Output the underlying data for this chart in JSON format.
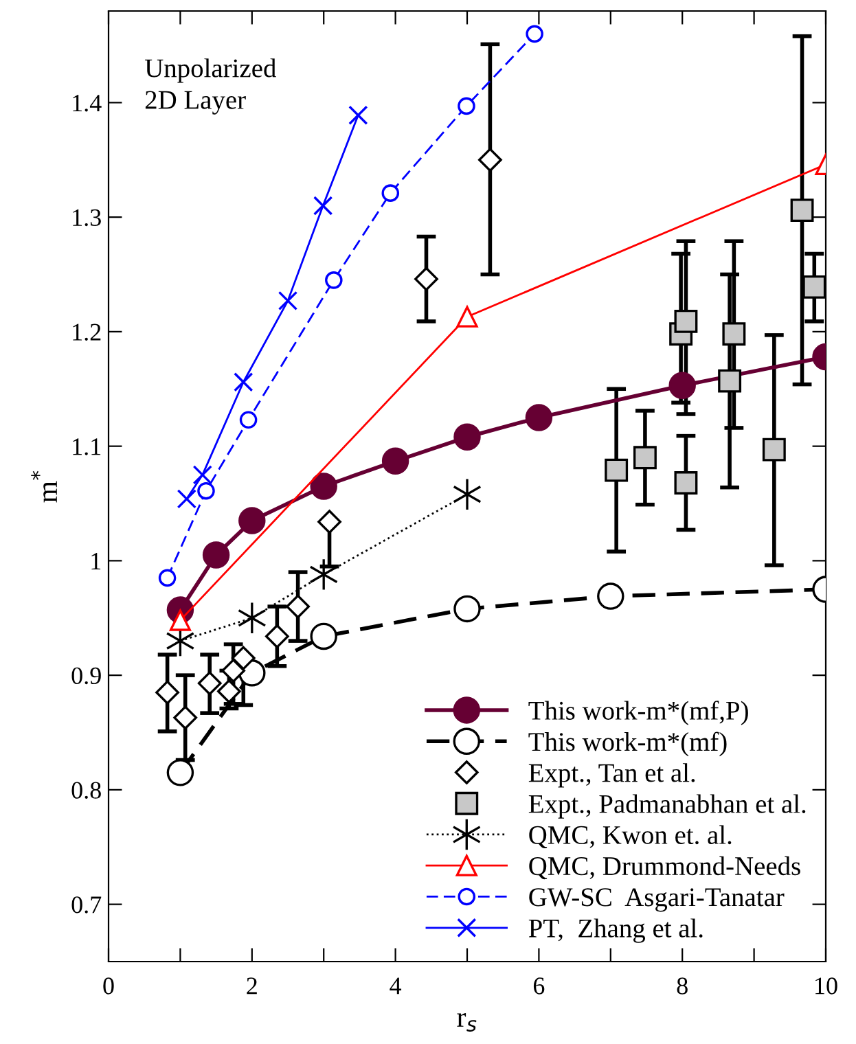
{
  "chart_data": {
    "type": "line",
    "xlabel": "r$_{s}$",
    "ylabel": "m$^{*}$",
    "annotations": [
      "Unpolarized\n2D Layer"
    ],
    "xlim": [
      0,
      10
    ],
    "ylim": [
      0.65,
      1.48
    ],
    "xticks": [
      0,
      {
        "value": 1,
        "label": null
      },
      2,
      {
        "value": 3,
        "label": null
      },
      4,
      {
        "value": 5,
        "label": null
      },
      6,
      {
        "value": 7,
        "label": null
      },
      8,
      {
        "value": 9,
        "label": null
      },
      10
    ],
    "yticks": [
      0.7,
      0.8,
      0.9,
      1,
      1.1,
      1.2,
      1.3,
      1.4
    ],
    "grid": false,
    "legend": "bottom right",
    "series": [
      {
        "name": "This work-m*(mf,P)",
        "color": "#660033",
        "marker": "circle",
        "line_style": "solid",
        "x": [
          1,
          1.5,
          2,
          3,
          4,
          5,
          6,
          8,
          10
        ],
        "values": [
          0.957,
          1.005,
          1.035,
          1.065,
          1.087,
          1.108,
          1.125,
          1.153,
          1.178
        ]
      },
      {
        "name": "This work-m*(mf)",
        "color": "#000000",
        "marker": "circle",
        "line_style": "dashed",
        "x": [
          1,
          2,
          3,
          5,
          7,
          10
        ],
        "values": [
          0.815,
          0.902,
          0.934,
          0.958,
          0.969,
          0.975
        ]
      },
      {
        "name": "Expt., Tan et al.",
        "type": "scatter",
        "color": "#000000",
        "marker": "diamond",
        "x": [
          0.82,
          1.07,
          1.41,
          1.68,
          1.74,
          1.88,
          2.35,
          2.64,
          3.08,
          4.43,
          5.32
        ],
        "values": [
          0.885,
          0.863,
          0.893,
          0.886,
          0.904,
          0.915,
          0.934,
          0.96,
          1.034,
          1.246,
          1.35
        ],
        "errors": [
          [
            0.851,
            0.918
          ],
          [
            0.826,
            0.9
          ],
          [
            0.867,
            0.918
          ],
          [
            0.871,
            0.904
          ],
          [
            0.875,
            0.927
          ],
          [
            0.874,
            0.915
          ],
          [
            0.908,
            0.96
          ],
          [
            0.93,
            0.99
          ],
          [
            0.995,
            1.034
          ],
          [
            1.209,
            1.283
          ],
          [
            1.25,
            1.451
          ]
        ]
      },
      {
        "name": "Expt., Padmanabhan et al.",
        "type": "scatter",
        "color": "#000000",
        "marker": "square",
        "x": [
          7.08,
          7.48,
          8.05,
          7.98,
          8.05,
          8.72,
          8.66,
          9.28,
          9.67,
          9.84
        ],
        "values": [
          1.079,
          1.09,
          1.068,
          1.198,
          1.209,
          1.198,
          1.157,
          1.097,
          1.306,
          1.239
        ],
        "errors": [
          [
            1.008,
            1.15
          ],
          [
            1.049,
            1.131
          ],
          [
            1.027,
            1.109
          ],
          [
            1.138,
            1.268
          ],
          [
            1.128,
            1.279
          ],
          [
            1.116,
            1.279
          ],
          [
            1.064,
            1.25
          ],
          [
            0.996,
            1.197
          ],
          [
            1.154,
            1.458
          ],
          [
            1.209,
            1.268
          ]
        ]
      },
      {
        "name": "QMC, Kwon et. al.",
        "color": "#000000",
        "marker": "cross",
        "line_style": "dotted",
        "x": [
          1,
          2,
          3,
          5
        ],
        "values": [
          0.93,
          0.95,
          0.988,
          1.058
        ]
      },
      {
        "name": "QMC, Drummond-Needs",
        "color": "#ff0000",
        "marker": "triangle",
        "line_style": "solid",
        "x": [
          1,
          5,
          10
        ],
        "values": [
          0.948,
          1.213,
          1.346
        ]
      },
      {
        "name": "GW-SC  Asgari-Tanatar",
        "color": "#0000ff",
        "marker": "circle",
        "line_style": "dashed",
        "x": [
          0.82,
          1.36,
          1.95,
          3.14,
          3.93,
          4.99,
          5.94
        ],
        "values": [
          0.985,
          1.061,
          1.123,
          1.245,
          1.321,
          1.397,
          1.46
        ]
      },
      {
        "name": "PT,  Zhang et al.",
        "color": "#0000ff",
        "marker": "cross",
        "line_style": "solid",
        "x": [
          1.09,
          1.31,
          1.88,
          2.5,
          2.99,
          3.48
        ],
        "values": [
          1.054,
          1.075,
          1.156,
          1.227,
          1.31,
          1.389
        ]
      }
    ]
  }
}
